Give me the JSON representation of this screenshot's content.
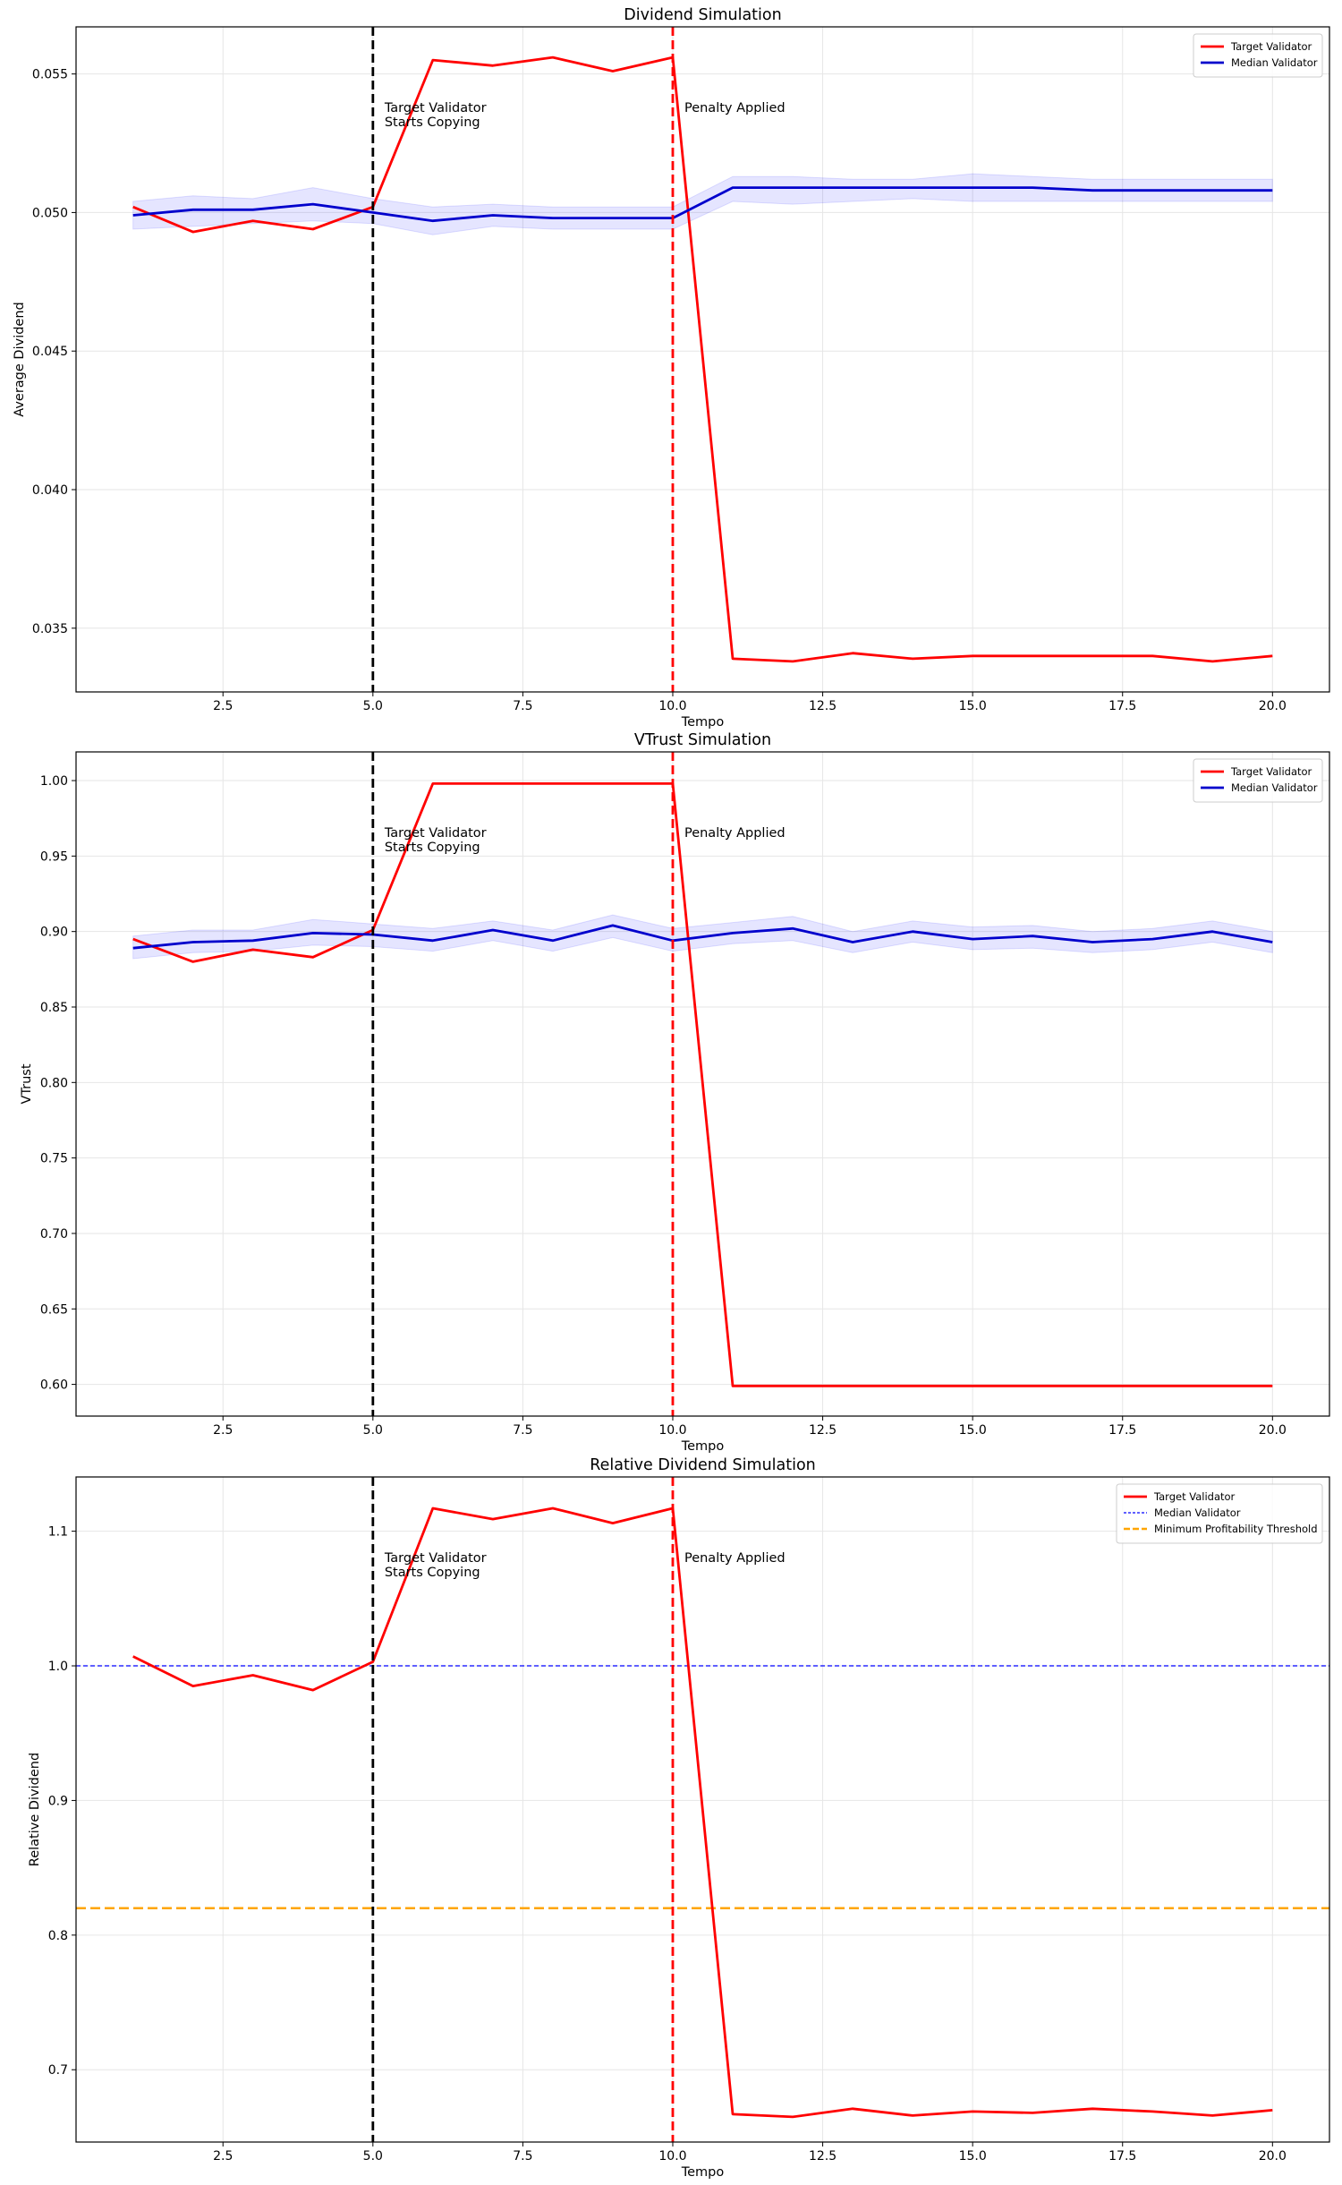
{
  "chart_data": [
    {
      "type": "line",
      "title": "Dividend Simulation",
      "xlabel": "Tempo",
      "ylabel": "Average Dividend",
      "xlim": [
        0.05,
        20.95
      ],
      "ylim": [
        0.0327,
        0.0567
      ],
      "xticks": [
        2.5,
        5.0,
        7.5,
        10.0,
        12.5,
        15.0,
        17.5,
        20.0
      ],
      "xtick_labels": [
        "2.5",
        "5.0",
        "7.5",
        "10.0",
        "12.5",
        "15.0",
        "17.5",
        "20.0"
      ],
      "yticks": [
        0.035,
        0.04,
        0.045,
        0.05,
        0.055
      ],
      "ytick_labels": [
        "0.035",
        "0.040",
        "0.045",
        "0.050",
        "0.055"
      ],
      "grid": true,
      "legend_position": "top-right",
      "x": [
        1,
        2,
        3,
        4,
        5,
        6,
        7,
        8,
        9,
        10,
        11,
        12,
        13,
        14,
        15,
        16,
        17,
        18,
        19,
        20
      ],
      "series": [
        {
          "name": "Target Validator",
          "color": "#ff0000",
          "style": "solid",
          "values": [
            0.0502,
            0.0493,
            0.0497,
            0.0494,
            0.0502,
            0.0555,
            0.0553,
            0.0556,
            0.0551,
            0.0556,
            0.0339,
            0.0338,
            0.0341,
            0.0339,
            0.034,
            0.034,
            0.034,
            0.034,
            0.0338,
            0.034
          ]
        },
        {
          "name": "Median Validator",
          "color": "#0000cc",
          "style": "solid",
          "values": [
            0.0499,
            0.0501,
            0.0501,
            0.0503,
            0.05,
            0.0497,
            0.0499,
            0.0498,
            0.0498,
            0.0498,
            0.0509,
            0.0509,
            0.0509,
            0.0509,
            0.0509,
            0.0509,
            0.0508,
            0.0508,
            0.0508,
            0.0508
          ],
          "band_lower": [
            0.0494,
            0.0495,
            0.0496,
            0.0497,
            0.0496,
            0.0492,
            0.0495,
            0.0494,
            0.0494,
            0.0494,
            0.0504,
            0.0503,
            0.0504,
            0.0505,
            0.0504,
            0.0504,
            0.0504,
            0.0504,
            0.0504,
            0.0504
          ],
          "band_upper": [
            0.0504,
            0.0506,
            0.0505,
            0.0509,
            0.0505,
            0.0502,
            0.0503,
            0.0502,
            0.0502,
            0.0502,
            0.0513,
            0.0513,
            0.0512,
            0.0512,
            0.0514,
            0.0513,
            0.0512,
            0.0512,
            0.0512,
            0.0512
          ]
        }
      ],
      "vlines": [
        {
          "x": 5.0,
          "color": "#000000",
          "label_lines": [
            "Target Validator",
            "Starts Copying"
          ]
        },
        {
          "x": 10.0,
          "color": "#ff0000",
          "label_lines": [
            "Penalty Applied"
          ]
        }
      ],
      "hlines": []
    },
    {
      "type": "line",
      "title": "VTrust Simulation",
      "xlabel": "Tempo",
      "ylabel": "VTrust",
      "xlim": [
        0.05,
        20.95
      ],
      "ylim": [
        0.579,
        1.019
      ],
      "xticks": [
        2.5,
        5.0,
        7.5,
        10.0,
        12.5,
        15.0,
        17.5,
        20.0
      ],
      "xtick_labels": [
        "2.5",
        "5.0",
        "7.5",
        "10.0",
        "12.5",
        "15.0",
        "17.5",
        "20.0"
      ],
      "yticks": [
        0.6,
        0.65,
        0.7,
        0.75,
        0.8,
        0.85,
        0.9,
        0.95,
        1.0
      ],
      "ytick_labels": [
        "0.60",
        "0.65",
        "0.70",
        "0.75",
        "0.80",
        "0.85",
        "0.90",
        "0.95",
        "1.00"
      ],
      "grid": true,
      "legend_position": "top-right",
      "x": [
        1,
        2,
        3,
        4,
        5,
        6,
        7,
        8,
        9,
        10,
        11,
        12,
        13,
        14,
        15,
        16,
        17,
        18,
        19,
        20
      ],
      "series": [
        {
          "name": "Target Validator",
          "color": "#ff0000",
          "style": "solid",
          "values": [
            0.895,
            0.88,
            0.888,
            0.883,
            0.901,
            0.998,
            0.998,
            0.998,
            0.998,
            0.998,
            0.599,
            0.599,
            0.599,
            0.599,
            0.599,
            0.599,
            0.599,
            0.599,
            0.599,
            0.599
          ]
        },
        {
          "name": "Median Validator",
          "color": "#0000cc",
          "style": "solid",
          "values": [
            0.889,
            0.893,
            0.894,
            0.899,
            0.898,
            0.894,
            0.901,
            0.894,
            0.904,
            0.894,
            0.899,
            0.902,
            0.893,
            0.9,
            0.895,
            0.897,
            0.893,
            0.895,
            0.9,
            0.893
          ],
          "band_lower": [
            0.882,
            0.886,
            0.887,
            0.891,
            0.89,
            0.887,
            0.894,
            0.887,
            0.896,
            0.887,
            0.892,
            0.894,
            0.886,
            0.893,
            0.888,
            0.889,
            0.886,
            0.888,
            0.893,
            0.886
          ],
          "band_upper": [
            0.897,
            0.901,
            0.901,
            0.908,
            0.905,
            0.902,
            0.907,
            0.901,
            0.911,
            0.902,
            0.906,
            0.91,
            0.9,
            0.907,
            0.903,
            0.904,
            0.9,
            0.902,
            0.907,
            0.9
          ]
        }
      ],
      "vlines": [
        {
          "x": 5.0,
          "color": "#000000",
          "label_lines": [
            "Target Validator",
            "Starts Copying"
          ]
        },
        {
          "x": 10.0,
          "color": "#ff0000",
          "label_lines": [
            "Penalty Applied"
          ]
        }
      ],
      "hlines": []
    },
    {
      "type": "line",
      "title": "Relative Dividend Simulation",
      "xlabel": "Tempo",
      "ylabel": "Relative Dividend",
      "xlim": [
        0.05,
        20.95
      ],
      "ylim": [
        0.6463,
        1.1403
      ],
      "xticks": [
        2.5,
        5.0,
        7.5,
        10.0,
        12.5,
        15.0,
        17.5,
        20.0
      ],
      "xtick_labels": [
        "2.5",
        "5.0",
        "7.5",
        "10.0",
        "12.5",
        "15.0",
        "17.5",
        "20.0"
      ],
      "yticks": [
        0.7,
        0.8,
        0.9,
        1.0,
        1.1
      ],
      "ytick_labels": [
        "0.7",
        "0.8",
        "0.9",
        "1.0",
        "1.1"
      ],
      "grid": true,
      "legend_position": "top-right",
      "x": [
        1,
        2,
        3,
        4,
        5,
        6,
        7,
        8,
        9,
        10,
        11,
        12,
        13,
        14,
        15,
        16,
        17,
        18,
        19,
        20
      ],
      "series": [
        {
          "name": "Target Validator",
          "color": "#ff0000",
          "style": "solid",
          "values": [
            1.007,
            0.985,
            0.993,
            0.982,
            1.003,
            1.117,
            1.109,
            1.117,
            1.106,
            1.117,
            0.667,
            0.665,
            0.671,
            0.666,
            0.669,
            0.668,
            0.671,
            0.669,
            0.666,
            0.67
          ]
        }
      ],
      "vlines": [
        {
          "x": 5.0,
          "color": "#000000",
          "label_lines": [
            "Target Validator",
            "Starts Copying"
          ]
        },
        {
          "x": 10.0,
          "color": "#ff0000",
          "label_lines": [
            "Penalty Applied"
          ]
        }
      ],
      "hlines": [
        {
          "name": "Median Validator",
          "y": 1.0,
          "color": "#0000ff",
          "style": "dotted-thin"
        },
        {
          "name": "Minimum Profitability Threshold",
          "y": 0.82,
          "color": "#ffa500",
          "style": "dashed-thick"
        }
      ]
    }
  ]
}
